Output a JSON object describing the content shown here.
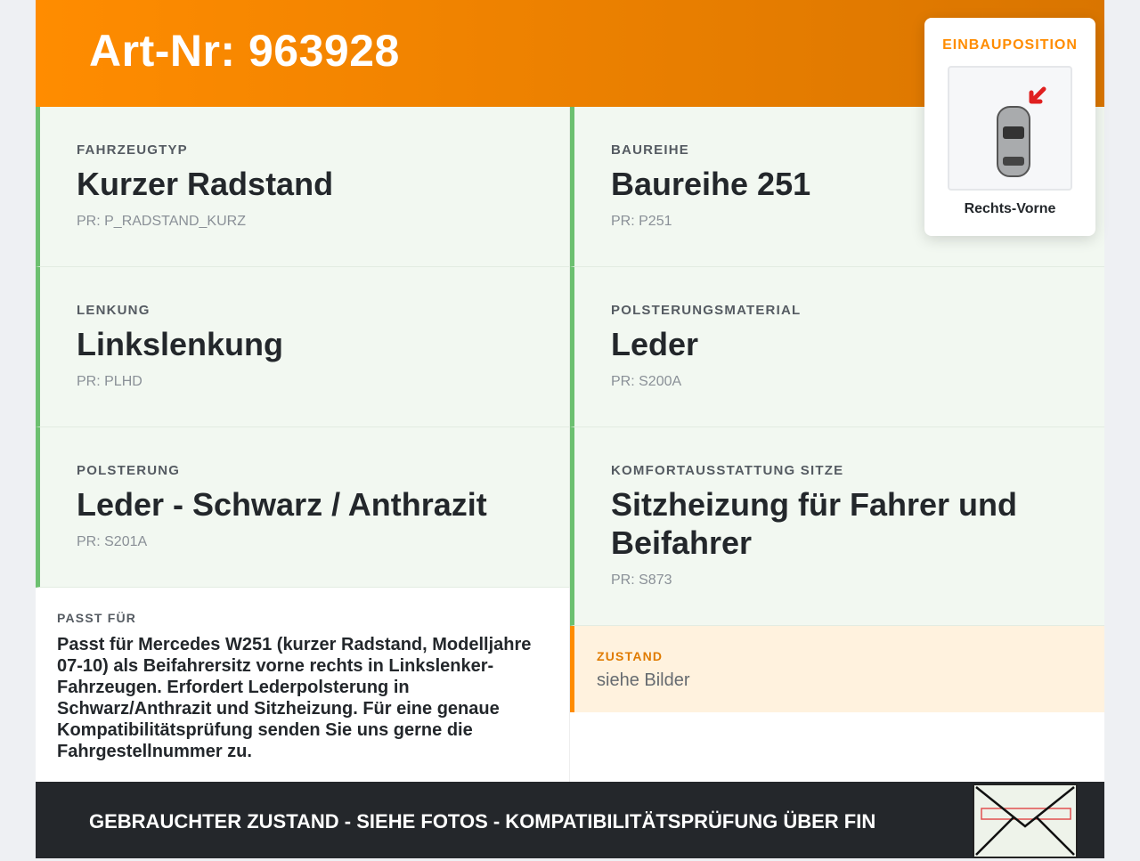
{
  "header": {
    "title": "Art-Nr: 963928"
  },
  "position": {
    "label": "EINBAUPOSITION",
    "value": "Rechts-Vorne",
    "icon": "car-top-view-arrow-icon"
  },
  "left": [
    {
      "label": "FAHRZEUGTYP",
      "value": "Kurzer Radstand",
      "pr": "PR: P_RADSTAND_KURZ"
    },
    {
      "label": "LENKUNG",
      "value": "Linkslenkung",
      "pr": "PR: PLHD"
    },
    {
      "label": "POLSTERUNG",
      "value": "Leder - Schwarz / Anthrazit",
      "pr": "PR: S201A"
    }
  ],
  "right": [
    {
      "label": "BAUREIHE",
      "value": "Baureihe 251",
      "pr": "PR: P251"
    },
    {
      "label": "POLSTERUNGSMATERIAL",
      "value": "Leder",
      "pr": "PR: S200A"
    },
    {
      "label": "KOMFORTAUSSTATTUNG SITZE",
      "value": "Sitzheizung für Fahrer und Beifahrer",
      "pr": "PR: S873"
    }
  ],
  "fit": {
    "label": "PASST FÜR",
    "text": "Passt für Mercedes W251 (kurzer Radstand, Modelljahre 07-10) als Beifahrersitz vorne rechts in Linkslenker-Fahrzeugen. Erfordert Lederpolsterung in Schwarz/Anthrazit und Sitzheizung. Für eine genaue Kompatibilitätsprüfung senden Sie uns gerne die Fahrgestellnummer zu."
  },
  "condition": {
    "label": "ZUSTAND",
    "value": "siehe Bilder"
  },
  "footer": {
    "text": "GEBRAUCHTER ZUSTAND - SIEHE FOTOS - KOMPATIBILITÄTSPRÜFUNG ÜBER FIN",
    "icon": "vin-envelope-icon"
  },
  "colors": {
    "accent": "#ff8c00",
    "green": "#6cc070",
    "dark": "#24272b"
  }
}
